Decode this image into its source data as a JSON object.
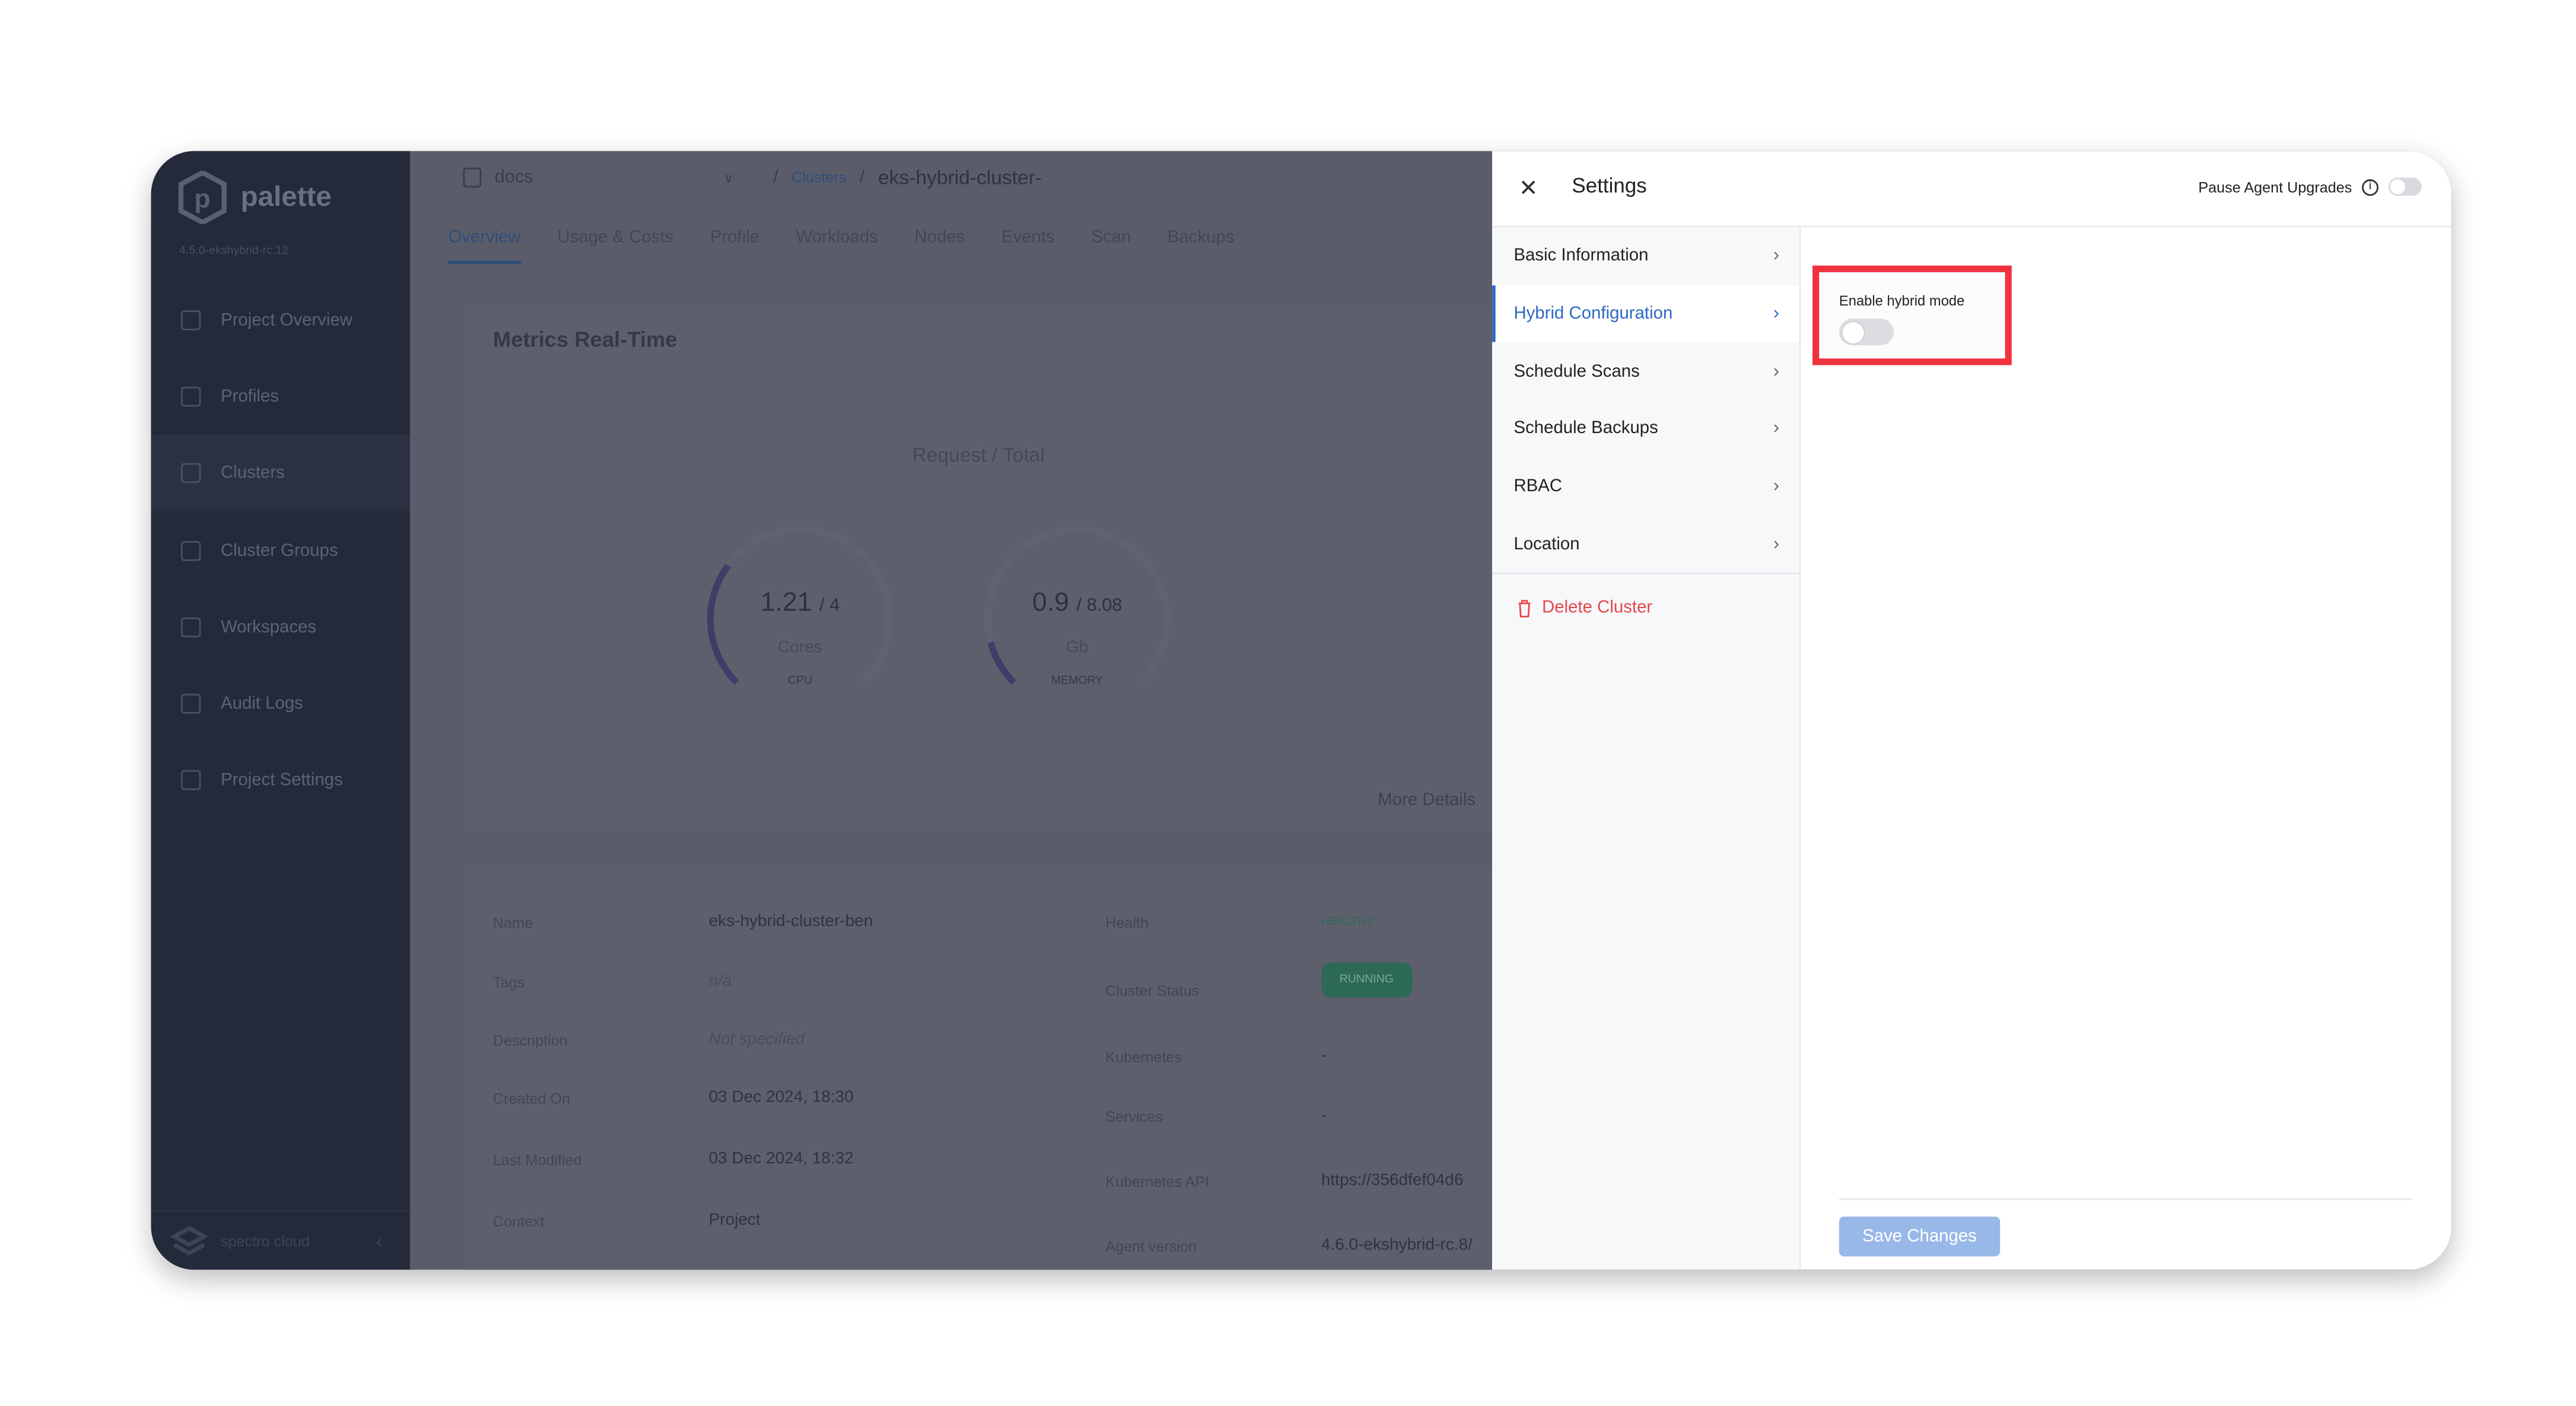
{
  "sidebar": {
    "brand": "palette",
    "version": "4.5.0-ekshybrid-rc.12",
    "items": [
      {
        "label": "Project Overview",
        "icon": "chart-icon"
      },
      {
        "label": "Profiles",
        "icon": "database-icon"
      },
      {
        "label": "Clusters",
        "icon": "list-icon",
        "active": true
      },
      {
        "label": "Cluster Groups",
        "icon": "network-icon"
      },
      {
        "label": "Workspaces",
        "icon": "target-icon"
      },
      {
        "label": "Audit Logs",
        "icon": "file-search-icon"
      },
      {
        "label": "Project Settings",
        "icon": "gear-icon"
      }
    ],
    "footer": "spectro cloud"
  },
  "header": {
    "project": "docs",
    "breadcrumb": [
      "Clusters",
      "eks-hybrid-cluster-"
    ]
  },
  "tabs": [
    "Overview",
    "Usage & Costs",
    "Profile",
    "Workloads",
    "Nodes",
    "Events",
    "Scan",
    "Backups"
  ],
  "metrics": {
    "title": "Metrics Real-Time",
    "subtitle": "Request / Total",
    "cpu": {
      "value": "1.21",
      "total": "/ 4",
      "unit": "Cores",
      "label": "CPU",
      "fraction": 0.3025
    },
    "memory": {
      "value": "0.9",
      "total": "/ 8.08",
      "unit": "Gb",
      "label": "MEMORY",
      "fraction": 0.111
    },
    "more": "More Details"
  },
  "details": {
    "left": [
      {
        "label": "Name",
        "value": "eks-hybrid-cluster-ben"
      },
      {
        "label": "Tags",
        "value": "n/a"
      },
      {
        "label": "Description",
        "value": "Not specified"
      },
      {
        "label": "Created On",
        "value": "03 Dec 2024, 18:30"
      },
      {
        "label": "Last Modified",
        "value": "03 Dec 2024, 18:32"
      },
      {
        "label": "Context",
        "value": "Project"
      }
    ],
    "right": [
      {
        "label": "Health",
        "value": "HEALTHY"
      },
      {
        "label": "Cluster Status",
        "value": "RUNNING"
      },
      {
        "label": "Kubernetes",
        "value": "-"
      },
      {
        "label": "Services",
        "value": "-"
      },
      {
        "label": "Kubernetes API",
        "value": "https://356dfef04d6"
      },
      {
        "label": "Agent version",
        "value": "4.6.0-ekshybrid-rc.8/"
      }
    ]
  },
  "settings": {
    "title": "Settings",
    "pause_label": "Pause Agent Upgrades",
    "pause_enabled": false,
    "menu": [
      "Basic Information",
      "Hybrid Configuration",
      "Schedule Scans",
      "Schedule Backups",
      "RBAC",
      "Location"
    ],
    "active": "Hybrid Configuration",
    "delete": "Delete Cluster",
    "hybrid_label": "Enable hybrid mode",
    "hybrid_enabled": false,
    "save": "Save Changes"
  },
  "colors": {
    "accent": "#2d68c4",
    "danger": "#e5484d",
    "highlight": "#f0323f",
    "sidebar": "#252a3a"
  }
}
